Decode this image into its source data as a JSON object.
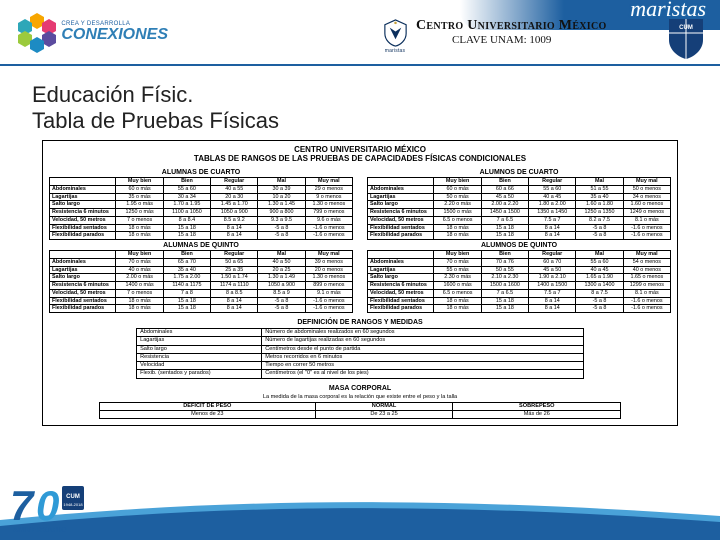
{
  "colors": {
    "brand_blue": "#1d5fa0",
    "accent_blue": "#2f7fb6",
    "black": "#111111",
    "white": "#ffffff"
  },
  "header": {
    "conex_small": "CREA Y DESARROLLA",
    "conex_big": "CONEXIONES",
    "center_line1": "Centro Universitario México",
    "center_line2": "CLAVE UNAM: 1009",
    "shield_sub": "maristas",
    "script": "maristas"
  },
  "title": "Educación Físic.",
  "subtitle": "Tabla de Pruebas Físicas",
  "frame": {
    "head1": "CENTRO UNIVERSITARIO MÉXICO",
    "head2": "TABLAS DE RANGOS DE LAS PRUEBAS DE CAPACIDADES FÍSICAS CONDICIONALES",
    "col_headers": [
      "Muy bien",
      "Bien",
      "Regular",
      "Mal",
      "Muy mal"
    ],
    "row_headers": [
      "Abdominales",
      "Lagartijas",
      "Salto largo",
      "Resistencia 6 minutos",
      "Velocidad, 50 metros",
      "Flexibilidad sentados",
      "Flexibilidad parados"
    ],
    "groups": [
      {
        "title": "ALUMNAS DE CUARTO",
        "rows": [
          [
            "60 o más",
            "55 a 60",
            "40 a 55",
            "30 a 39",
            "29 o menos"
          ],
          [
            "35 o más",
            "30 a 34",
            "20 a 30",
            "10 a 20",
            "9 o menos"
          ],
          [
            "1.95 o más",
            "1.70 a 1.95",
            "1.45 a 1.70",
            "1.30 a 1.45",
            "1.30 o menos"
          ],
          [
            "1250 o más",
            "1100 a 1050",
            "1050 a 900",
            "900 a 800",
            "799 o menos"
          ],
          [
            "7 o menos",
            "8 a 8.4",
            "8.5 a 9.2",
            "9.3 a 9.5",
            "9.6 o más"
          ],
          [
            "18 o más",
            "15 a 18",
            "8 a 14",
            "-5 a 8",
            "-1.6 o menos"
          ],
          [
            "18 o más",
            "15 a 18",
            "8 a 14",
            "-5 a 8",
            "-1.6 o menos"
          ]
        ]
      },
      {
        "title": "ALUMNOS DE CUARTO",
        "rows": [
          [
            "60 o más",
            "60 a 66",
            "55 a 60",
            "51 a 55",
            "50 o menos"
          ],
          [
            "50 o más",
            "45 a 50",
            "40 a 45",
            "35 a 40",
            "34 o menos"
          ],
          [
            "2.20 o más",
            "2.00 a 2.20",
            "1.80 a 2.00",
            "1.60 a 1.80",
            "1.60 o menos"
          ],
          [
            "1500 o más",
            "1450 a 1500",
            "1350 a 1450",
            "1250 a 1350",
            "1249 o menos"
          ],
          [
            "6.5 o menos",
            "7 a 6.5",
            "7.5 a 7",
            "8.2 a 7.5",
            "8.1 o más"
          ],
          [
            "18 o más",
            "15 a 18",
            "8 a 14",
            "-5 a 8",
            "-1.6 o menos"
          ],
          [
            "18 o más",
            "15 a 18",
            "8 a 14",
            "-5 a 8",
            "-1.6 o menos"
          ]
        ]
      },
      {
        "title": "ALUMNAS DE QUINTO",
        "rows": [
          [
            "70 o más",
            "65 a 70",
            "50 a 65",
            "40 a 50",
            "39 o menos"
          ],
          [
            "40 o más",
            "35 a 40",
            "25 a 35",
            "20 a 25",
            "20 o menos"
          ],
          [
            "2.00 o más",
            "1.75 a 2.00",
            "1.50 a 1.74",
            "1.30 a 1.49",
            "1.30 o menos"
          ],
          [
            "1400 o más",
            "1140 a 1175",
            "1174 a 1110",
            "1050 a 900",
            "899 o menos"
          ],
          [
            "7 o menos",
            "7 a 8",
            "8 a 8.5",
            "8.5 a 9",
            "9.1 o más"
          ],
          [
            "18 o más",
            "15 a 18",
            "8 a 14",
            "-5 a 8",
            "-1.6 o menos"
          ],
          [
            "18 o más",
            "15 a 18",
            "8 a 14",
            "-5 a 8",
            "-1.6 o menos"
          ]
        ]
      },
      {
        "title": "ALUMNOS DE QUINTO",
        "rows": [
          [
            "70 o más",
            "70 a 76",
            "60 a 70",
            "55 a 60",
            "54 o menos"
          ],
          [
            "55 o más",
            "50 a 55",
            "45 a 50",
            "40 a 45",
            "40 o menos"
          ],
          [
            "2.30 o más",
            "2.10 a 2.30",
            "1.90 a 2.10",
            "1.65 a 1.90",
            "1.65 o menos"
          ],
          [
            "1600 o más",
            "1500 a 1600",
            "1400 a 1500",
            "1300 a 1400",
            "1299 o menos"
          ],
          [
            "6.5 o menos",
            "7 a 6.5",
            "7.5 a 7",
            "8 a 7.5",
            "8.1 o más"
          ],
          [
            "18 o más",
            "15 a 18",
            "8 a 14",
            "-5 a 8",
            "-1.6 o menos"
          ],
          [
            "18 o más",
            "15 a 18",
            "8 a 14",
            "-5 a 8",
            "-1.6 o menos"
          ]
        ]
      }
    ],
    "def_title": "DEFINICIÓN DE RANGOS Y MEDIDAS",
    "def_rows": [
      [
        "Abdominales",
        "Número de abdominales realizados en 60 segundos"
      ],
      [
        "Lagartijas",
        "Número de lagartijas realizadas en 60 segundos"
      ],
      [
        "Salto largo",
        "Centímetros desde el punto de partida"
      ],
      [
        "Resistencia",
        "Metros recorridos en 6 minutos"
      ],
      [
        "Velocidad",
        "Tiempo en correr 50 metros"
      ],
      [
        "Flexib. (sentados y parados)",
        "Centímetros (el \"0\" es al nivel de los pies)"
      ]
    ],
    "masa_title": "MASA CORPORAL",
    "masa_sub": "La medida de la masa corporal es la relación que existe entre el peso y la talla",
    "masa_headers": [
      "DÉFICIT DE PESO",
      "NORMAL",
      "SOBREPESO"
    ],
    "masa_vals": [
      "Menos de 23",
      "De 23 a 25",
      "Más de 26"
    ]
  },
  "footer": {
    "big": "70",
    "word": "ANIVERSARIO",
    "years": "1948-2018"
  }
}
